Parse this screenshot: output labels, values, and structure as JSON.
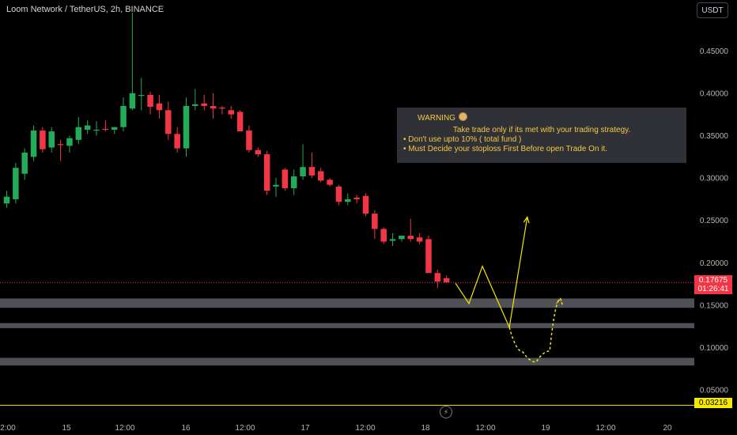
{
  "header": {
    "title": "Loom Network / TetherUS, 2h, BINANCE",
    "currency_button": "USDT"
  },
  "warning": {
    "title": "WARNING",
    "line1": "Take trade only if its met with your trading strategy.",
    "line2": "• Don't use upto 10% ( total fund )",
    "line3": "• Must Decide your stoploss First Before open Trade On it."
  },
  "price_tag": {
    "price": "0.17675",
    "countdown": "01:26:41"
  },
  "low_tag": {
    "price": "0.03216"
  },
  "colors": {
    "up": "#26a69a",
    "up_bright": "#22ab59",
    "down": "#f23645",
    "annotation": "#f5e900",
    "zone": "#5d5f66"
  },
  "icons": {
    "replay": "lightning-icon"
  },
  "chart_data": {
    "type": "candlestick",
    "symbol": "LOOMUSDT",
    "interval": "2h",
    "ylim": [
      0.025,
      0.495
    ],
    "yticks": [
      {
        "value": 0.45,
        "label": "0.45000"
      },
      {
        "value": 0.4,
        "label": "0.40000"
      },
      {
        "value": 0.35,
        "label": "0.35000"
      },
      {
        "value": 0.3,
        "label": "0.30000"
      },
      {
        "value": 0.25,
        "label": "0.25000"
      },
      {
        "value": 0.2,
        "label": "0.20000"
      },
      {
        "value": 0.15,
        "label": "0.15000"
      },
      {
        "value": 0.1,
        "label": "0.10000"
      },
      {
        "value": 0.05,
        "label": "0.05000"
      }
    ],
    "xticks": [
      "2:00",
      "15",
      "12:00",
      "16",
      "12:00",
      "17",
      "12:00",
      "18",
      "12:00",
      "19",
      "12:00",
      "20"
    ],
    "candles": [
      {
        "o": 0.27,
        "h": 0.285,
        "l": 0.265,
        "c": 0.278
      },
      {
        "o": 0.275,
        "h": 0.318,
        "l": 0.27,
        "c": 0.312
      },
      {
        "o": 0.305,
        "h": 0.335,
        "l": 0.298,
        "c": 0.33
      },
      {
        "o": 0.325,
        "h": 0.362,
        "l": 0.32,
        "c": 0.356
      },
      {
        "o": 0.356,
        "h": 0.36,
        "l": 0.33,
        "c": 0.334
      },
      {
        "o": 0.336,
        "h": 0.36,
        "l": 0.33,
        "c": 0.355
      },
      {
        "o": 0.34,
        "h": 0.345,
        "l": 0.32,
        "c": 0.339
      },
      {
        "o": 0.338,
        "h": 0.35,
        "l": 0.33,
        "c": 0.347
      },
      {
        "o": 0.345,
        "h": 0.372,
        "l": 0.34,
        "c": 0.36
      },
      {
        "o": 0.357,
        "h": 0.368,
        "l": 0.352,
        "c": 0.362
      },
      {
        "o": 0.357,
        "h": 0.367,
        "l": 0.35,
        "c": 0.357
      },
      {
        "o": 0.358,
        "h": 0.368,
        "l": 0.355,
        "c": 0.357
      },
      {
        "o": 0.357,
        "h": 0.36,
        "l": 0.352,
        "c": 0.36
      },
      {
        "o": 0.36,
        "h": 0.395,
        "l": 0.355,
        "c": 0.385
      },
      {
        "o": 0.382,
        "h": 0.495,
        "l": 0.38,
        "c": 0.4
      },
      {
        "o": 0.398,
        "h": 0.418,
        "l": 0.38,
        "c": 0.398
      },
      {
        "o": 0.398,
        "h": 0.402,
        "l": 0.375,
        "c": 0.384
      },
      {
        "o": 0.388,
        "h": 0.398,
        "l": 0.37,
        "c": 0.38
      },
      {
        "o": 0.38,
        "h": 0.39,
        "l": 0.345,
        "c": 0.352
      },
      {
        "o": 0.352,
        "h": 0.36,
        "l": 0.33,
        "c": 0.335
      },
      {
        "o": 0.335,
        "h": 0.395,
        "l": 0.325,
        "c": 0.385
      },
      {
        "o": 0.385,
        "h": 0.405,
        "l": 0.38,
        "c": 0.387
      },
      {
        "o": 0.388,
        "h": 0.398,
        "l": 0.38,
        "c": 0.385
      },
      {
        "o": 0.385,
        "h": 0.4,
        "l": 0.37,
        "c": 0.382
      },
      {
        "o": 0.383,
        "h": 0.385,
        "l": 0.375,
        "c": 0.382
      },
      {
        "o": 0.38,
        "h": 0.385,
        "l": 0.37,
        "c": 0.375
      },
      {
        "o": 0.378,
        "h": 0.38,
        "l": 0.355,
        "c": 0.355
      },
      {
        "o": 0.356,
        "h": 0.362,
        "l": 0.33,
        "c": 0.333
      },
      {
        "o": 0.333,
        "h": 0.336,
        "l": 0.325,
        "c": 0.328
      },
      {
        "o": 0.328,
        "h": 0.332,
        "l": 0.28,
        "c": 0.285
      },
      {
        "o": 0.29,
        "h": 0.3,
        "l": 0.278,
        "c": 0.292
      },
      {
        "o": 0.31,
        "h": 0.312,
        "l": 0.285,
        "c": 0.288
      },
      {
        "o": 0.288,
        "h": 0.31,
        "l": 0.28,
        "c": 0.302
      },
      {
        "o": 0.302,
        "h": 0.34,
        "l": 0.298,
        "c": 0.313
      },
      {
        "o": 0.313,
        "h": 0.33,
        "l": 0.3,
        "c": 0.303
      },
      {
        "o": 0.308,
        "h": 0.312,
        "l": 0.295,
        "c": 0.297
      },
      {
        "o": 0.298,
        "h": 0.3,
        "l": 0.29,
        "c": 0.292
      },
      {
        "o": 0.29,
        "h": 0.292,
        "l": 0.268,
        "c": 0.272
      },
      {
        "o": 0.272,
        "h": 0.282,
        "l": 0.268,
        "c": 0.275
      },
      {
        "o": 0.277,
        "h": 0.28,
        "l": 0.27,
        "c": 0.275
      },
      {
        "o": 0.279,
        "h": 0.282,
        "l": 0.255,
        "c": 0.258
      },
      {
        "o": 0.258,
        "h": 0.262,
        "l": 0.228,
        "c": 0.24
      },
      {
        "o": 0.24,
        "h": 0.242,
        "l": 0.222,
        "c": 0.225
      },
      {
        "o": 0.226,
        "h": 0.235,
        "l": 0.22,
        "c": 0.228
      },
      {
        "o": 0.228,
        "h": 0.232,
        "l": 0.225,
        "c": 0.232
      },
      {
        "o": 0.232,
        "h": 0.252,
        "l": 0.225,
        "c": 0.228
      },
      {
        "o": 0.23,
        "h": 0.235,
        "l": 0.222,
        "c": 0.225
      },
      {
        "o": 0.228,
        "h": 0.232,
        "l": 0.188,
        "c": 0.188
      },
      {
        "o": 0.188,
        "h": 0.192,
        "l": 0.17,
        "c": 0.178
      },
      {
        "o": 0.182,
        "h": 0.185,
        "l": 0.177,
        "c": 0.177
      }
    ],
    "current_price": 0.17675,
    "support_zones": [
      {
        "low": 0.147,
        "high": 0.158
      },
      {
        "low": 0.123,
        "high": 0.129
      },
      {
        "low": 0.079,
        "high": 0.088
      }
    ],
    "low_line": 0.03216,
    "projection_path": [
      {
        "bar": 50,
        "price": 0.176
      },
      {
        "bar": 51.5,
        "price": 0.152
      },
      {
        "bar": 53,
        "price": 0.196
      },
      {
        "bar": 56,
        "price": 0.124
      },
      {
        "bar": 58,
        "price": 0.254
      }
    ],
    "dashed_path": [
      {
        "bar": 56,
        "price": 0.124
      },
      {
        "bar": 57.5,
        "price": 0.095
      },
      {
        "bar": 59,
        "price": 0.083
      },
      {
        "bar": 60.5,
        "price": 0.096
      },
      {
        "bar": 61.7,
        "price": 0.158
      }
    ]
  }
}
